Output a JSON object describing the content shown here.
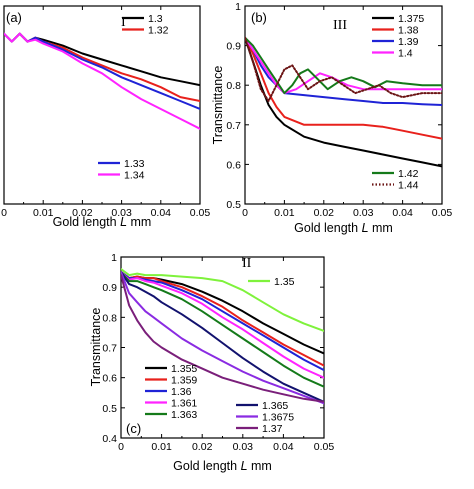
{
  "chart_data": [
    {
      "panel": "(a)",
      "roman": "I",
      "type": "line",
      "xlabel": "Gold length",
      "xlabel_var": "L",
      "xlabel_unit": "mm",
      "ylabel": "",
      "xlim": [
        0,
        0.05
      ],
      "ylim": [
        0.5,
        1.0
      ],
      "x_ticks": [
        "0",
        "0.01",
        "0.02",
        "0.03",
        "0.04",
        "0.05"
      ],
      "y_ticks": [],
      "grid": false,
      "legend_placement": [
        "top-right",
        "bottom-center"
      ],
      "series": [
        {
          "name": "1.3",
          "color": "#000000",
          "style": "solid",
          "x": [
            0,
            0.002,
            0.004,
            0.006,
            0.008,
            0.01,
            0.015,
            0.02,
            0.025,
            0.03,
            0.035,
            0.04,
            0.045,
            0.05
          ],
          "y": [
            0.93,
            0.91,
            0.93,
            0.91,
            0.92,
            0.915,
            0.9,
            0.88,
            0.865,
            0.85,
            0.835,
            0.82,
            0.81,
            0.8
          ]
        },
        {
          "name": "1.32",
          "color": "#e8211c",
          "style": "solid",
          "x": [
            0,
            0.002,
            0.004,
            0.006,
            0.008,
            0.01,
            0.015,
            0.02,
            0.025,
            0.03,
            0.035,
            0.04,
            0.045,
            0.05
          ],
          "y": [
            0.93,
            0.91,
            0.93,
            0.91,
            0.92,
            0.91,
            0.895,
            0.87,
            0.85,
            0.83,
            0.815,
            0.795,
            0.77,
            0.76
          ]
        },
        {
          "name": "1.33",
          "color": "#1f23d6",
          "style": "solid",
          "x": [
            0,
            0.002,
            0.004,
            0.006,
            0.008,
            0.01,
            0.015,
            0.02,
            0.025,
            0.03,
            0.035,
            0.04,
            0.045,
            0.05
          ],
          "y": [
            0.93,
            0.91,
            0.93,
            0.91,
            0.92,
            0.91,
            0.89,
            0.865,
            0.845,
            0.82,
            0.8,
            0.78,
            0.76,
            0.74
          ]
        },
        {
          "name": "1.34",
          "color": "#ff23ff",
          "style": "solid",
          "x": [
            0,
            0.002,
            0.004,
            0.006,
            0.008,
            0.01,
            0.015,
            0.02,
            0.025,
            0.03,
            0.035,
            0.04,
            0.045,
            0.05
          ],
          "y": [
            0.93,
            0.91,
            0.93,
            0.91,
            0.915,
            0.905,
            0.885,
            0.855,
            0.83,
            0.795,
            0.765,
            0.74,
            0.715,
            0.69
          ]
        }
      ]
    },
    {
      "panel": "(b)",
      "roman": "III",
      "type": "line",
      "xlabel": "Gold length",
      "xlabel_var": "L",
      "xlabel_unit": "mm",
      "ylabel": "Transmittance",
      "xlim": [
        0,
        0.05
      ],
      "ylim": [
        0.5,
        1.0
      ],
      "x_ticks": [
        "0",
        "0.01",
        "0.02",
        "0.03",
        "0.04",
        "0.05"
      ],
      "y_ticks": [
        "0.5",
        "0.6",
        "0.7",
        "0.8",
        "0.9",
        "1"
      ],
      "grid": false,
      "legend_placement": [
        "top-right",
        "bottom-right"
      ],
      "series": [
        {
          "name": "1.375",
          "color": "#000000",
          "style": "solid",
          "x": [
            0,
            0.002,
            0.004,
            0.006,
            0.008,
            0.01,
            0.015,
            0.02,
            0.025,
            0.03,
            0.035,
            0.04,
            0.045,
            0.05
          ],
          "y": [
            0.92,
            0.86,
            0.8,
            0.75,
            0.72,
            0.7,
            0.67,
            0.655,
            0.645,
            0.635,
            0.625,
            0.615,
            0.605,
            0.595
          ]
        },
        {
          "name": "1.38",
          "color": "#e8211c",
          "style": "solid",
          "x": [
            0,
            0.002,
            0.004,
            0.006,
            0.008,
            0.01,
            0.015,
            0.02,
            0.025,
            0.03,
            0.035,
            0.04,
            0.045,
            0.05
          ],
          "y": [
            0.92,
            0.88,
            0.83,
            0.78,
            0.745,
            0.72,
            0.7,
            0.7,
            0.7,
            0.7,
            0.695,
            0.685,
            0.675,
            0.665
          ]
        },
        {
          "name": "1.39",
          "color": "#1f23d6",
          "style": "solid",
          "x": [
            0,
            0.002,
            0.004,
            0.006,
            0.008,
            0.01,
            0.015,
            0.02,
            0.025,
            0.03,
            0.035,
            0.04,
            0.045,
            0.05
          ],
          "y": [
            0.92,
            0.89,
            0.85,
            0.82,
            0.8,
            0.78,
            0.775,
            0.77,
            0.765,
            0.76,
            0.755,
            0.755,
            0.752,
            0.75
          ]
        },
        {
          "name": "1.4",
          "color": "#ff23ff",
          "style": "solid",
          "x": [
            0,
            0.002,
            0.004,
            0.006,
            0.008,
            0.01,
            0.013,
            0.016,
            0.019,
            0.022,
            0.026,
            0.03,
            0.035,
            0.04,
            0.045,
            0.05
          ],
          "y": [
            0.92,
            0.89,
            0.86,
            0.83,
            0.8,
            0.78,
            0.79,
            0.81,
            0.83,
            0.82,
            0.8,
            0.79,
            0.79,
            0.79,
            0.79,
            0.79
          ]
        },
        {
          "name": "1.42",
          "color": "#157a1a",
          "style": "solid",
          "x": [
            0,
            0.002,
            0.004,
            0.006,
            0.008,
            0.01,
            0.012,
            0.014,
            0.016,
            0.018,
            0.021,
            0.024,
            0.027,
            0.03,
            0.033,
            0.036,
            0.04,
            0.045,
            0.05
          ],
          "y": [
            0.92,
            0.9,
            0.87,
            0.84,
            0.81,
            0.78,
            0.8,
            0.83,
            0.84,
            0.82,
            0.79,
            0.81,
            0.82,
            0.81,
            0.795,
            0.81,
            0.805,
            0.8,
            0.8
          ]
        },
        {
          "name": "1.44",
          "color": "#6b1414",
          "style": "dotted",
          "x": [
            0,
            0.002,
            0.004,
            0.006,
            0.008,
            0.01,
            0.012,
            0.014,
            0.016,
            0.019,
            0.022,
            0.025,
            0.028,
            0.031,
            0.034,
            0.037,
            0.04,
            0.045,
            0.05
          ],
          "y": [
            0.92,
            0.86,
            0.79,
            0.76,
            0.8,
            0.84,
            0.85,
            0.82,
            0.79,
            0.81,
            0.82,
            0.8,
            0.78,
            0.79,
            0.8,
            0.78,
            0.77,
            0.78,
            0.78
          ]
        }
      ]
    },
    {
      "panel": "(c)",
      "roman": "II",
      "type": "line",
      "xlabel": "Gold length",
      "xlabel_var": "L",
      "xlabel_unit": "mm",
      "ylabel": "Transmittance",
      "xlim": [
        0,
        0.05
      ],
      "ylim": [
        0.4,
        1.0
      ],
      "x_ticks": [
        "0",
        "0.01",
        "0.02",
        "0.03",
        "0.04",
        "0.05"
      ],
      "y_ticks": [
        "0.4",
        "0.5",
        "0.6",
        "0.7",
        "0.8",
        "0.9",
        "1"
      ],
      "grid": false,
      "legend_placement": [
        "top-right",
        "bottom-left",
        "bottom-center"
      ],
      "series": [
        {
          "name": "1.35",
          "color": "#7ff23c",
          "style": "solid",
          "x": [
            0,
            0.002,
            0.004,
            0.006,
            0.008,
            0.01,
            0.015,
            0.02,
            0.025,
            0.03,
            0.035,
            0.04,
            0.045,
            0.05
          ],
          "y": [
            0.96,
            0.94,
            0.945,
            0.94,
            0.94,
            0.94,
            0.935,
            0.93,
            0.92,
            0.89,
            0.85,
            0.81,
            0.78,
            0.755
          ]
        },
        {
          "name": "1.355",
          "color": "#000000",
          "style": "solid",
          "x": [
            0,
            0.002,
            0.004,
            0.006,
            0.008,
            0.01,
            0.015,
            0.02,
            0.025,
            0.03,
            0.035,
            0.04,
            0.045,
            0.05
          ],
          "y": [
            0.95,
            0.93,
            0.935,
            0.93,
            0.93,
            0.925,
            0.91,
            0.885,
            0.855,
            0.82,
            0.78,
            0.745,
            0.71,
            0.68
          ]
        },
        {
          "name": "1.359",
          "color": "#e8211c",
          "style": "solid",
          "x": [
            0,
            0.002,
            0.004,
            0.006,
            0.008,
            0.01,
            0.015,
            0.02,
            0.025,
            0.03,
            0.035,
            0.04,
            0.045,
            0.05
          ],
          "y": [
            0.95,
            0.93,
            0.935,
            0.93,
            0.93,
            0.92,
            0.9,
            0.87,
            0.835,
            0.79,
            0.75,
            0.71,
            0.675,
            0.64
          ]
        },
        {
          "name": "1.36",
          "color": "#1f23d6",
          "style": "solid",
          "x": [
            0,
            0.002,
            0.004,
            0.006,
            0.008,
            0.01,
            0.015,
            0.02,
            0.025,
            0.03,
            0.035,
            0.04,
            0.045,
            0.05
          ],
          "y": [
            0.95,
            0.93,
            0.93,
            0.925,
            0.92,
            0.915,
            0.89,
            0.86,
            0.82,
            0.78,
            0.74,
            0.7,
            0.66,
            0.625
          ]
        },
        {
          "name": "1.361",
          "color": "#ff23ff",
          "style": "solid",
          "x": [
            0,
            0.002,
            0.004,
            0.006,
            0.008,
            0.01,
            0.015,
            0.02,
            0.025,
            0.03,
            0.035,
            0.04,
            0.045,
            0.05
          ],
          "y": [
            0.95,
            0.925,
            0.93,
            0.92,
            0.915,
            0.905,
            0.88,
            0.845,
            0.8,
            0.76,
            0.715,
            0.67,
            0.63,
            0.6
          ]
        },
        {
          "name": "1.363",
          "color": "#157a1a",
          "style": "solid",
          "x": [
            0,
            0.002,
            0.004,
            0.006,
            0.008,
            0.01,
            0.015,
            0.02,
            0.025,
            0.03,
            0.035,
            0.04,
            0.045,
            0.05
          ],
          "y": [
            0.95,
            0.92,
            0.92,
            0.91,
            0.9,
            0.89,
            0.86,
            0.82,
            0.775,
            0.73,
            0.685,
            0.64,
            0.6,
            0.57
          ]
        },
        {
          "name": "1.365",
          "color": "#12126e",
          "style": "solid",
          "x": [
            0,
            0.002,
            0.004,
            0.006,
            0.008,
            0.01,
            0.015,
            0.02,
            0.025,
            0.03,
            0.035,
            0.04,
            0.045,
            0.05
          ],
          "y": [
            0.95,
            0.91,
            0.9,
            0.885,
            0.87,
            0.85,
            0.81,
            0.765,
            0.715,
            0.665,
            0.62,
            0.58,
            0.55,
            0.52
          ]
        },
        {
          "name": "1.3675",
          "color": "#8a2be2",
          "style": "solid",
          "x": [
            0,
            0.002,
            0.004,
            0.006,
            0.008,
            0.01,
            0.015,
            0.02,
            0.025,
            0.03,
            0.035,
            0.04,
            0.045,
            0.05
          ],
          "y": [
            0.95,
            0.88,
            0.85,
            0.82,
            0.8,
            0.78,
            0.73,
            0.69,
            0.655,
            0.62,
            0.59,
            0.565,
            0.54,
            0.515
          ]
        },
        {
          "name": "1.37",
          "color": "#7a1f7a",
          "style": "solid",
          "x": [
            0,
            0.002,
            0.004,
            0.006,
            0.008,
            0.01,
            0.015,
            0.02,
            0.025,
            0.03,
            0.035,
            0.04,
            0.045,
            0.05
          ],
          "y": [
            0.94,
            0.84,
            0.79,
            0.75,
            0.72,
            0.7,
            0.66,
            0.63,
            0.6,
            0.58,
            0.56,
            0.545,
            0.53,
            0.52
          ]
        }
      ]
    }
  ]
}
